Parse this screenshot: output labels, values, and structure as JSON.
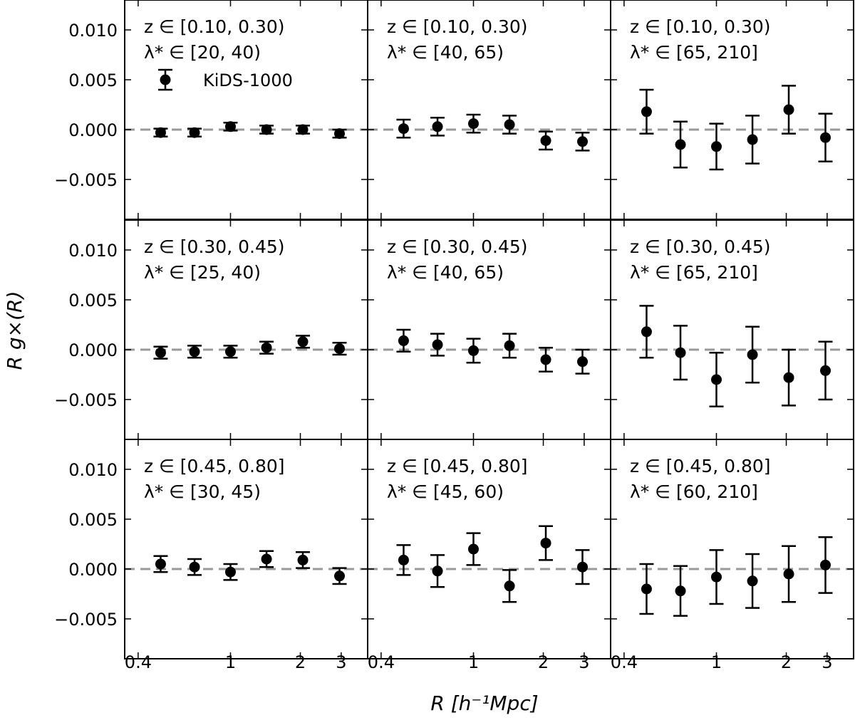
{
  "chart_data": {
    "type": "scatter",
    "layout": "3x3 grid, shared axes",
    "xlabel": "R [h⁻¹Mpc]",
    "ylabel": "R g×(R)",
    "xscale": "log",
    "xlim": [
      0.35,
      3.9
    ],
    "ylim": [
      -0.009,
      0.013
    ],
    "xticks": [
      0.4,
      1,
      2,
      3
    ],
    "xtick_labels": [
      "0.4",
      "1",
      "2",
      "3"
    ],
    "yticks": [
      -0.005,
      0.0,
      0.005,
      0.01
    ],
    "ytick_labels": [
      "−0.005",
      "0.000",
      "0.005",
      "0.010"
    ],
    "reference_line": 0.0,
    "legend": {
      "label": "KiDS-1000",
      "location": "top-left (first panel)"
    },
    "x": [
      0.5,
      0.7,
      1.0,
      1.43,
      2.05,
      2.95
    ],
    "panels": [
      {
        "z_label": "z ∈ [0.10, 0.30)",
        "lambda_label": "λ* ∈ [20, 40)",
        "y": [
          -0.0003,
          -0.0003,
          0.0003,
          0.0,
          0.0,
          -0.0004
        ],
        "err": [
          0.0004,
          0.0004,
          0.0004,
          0.0004,
          0.0004,
          0.0004
        ]
      },
      {
        "z_label": "z ∈ [0.10, 0.30)",
        "lambda_label": "λ* ∈ [40, 65)",
        "y": [
          0.0001,
          0.0003,
          0.0006,
          0.0005,
          -0.0011,
          -0.0012
        ],
        "err": [
          0.0009,
          0.0009,
          0.0009,
          0.0009,
          0.0009,
          0.0009
        ]
      },
      {
        "z_label": "z ∈ [0.10, 0.30)",
        "lambda_label": "λ* ∈ [65, 210]",
        "y": [
          0.0018,
          -0.0015,
          -0.0017,
          -0.001,
          0.002,
          -0.0008
        ],
        "err": [
          0.0022,
          0.0023,
          0.0023,
          0.0024,
          0.0024,
          0.0024
        ]
      },
      {
        "z_label": "z ∈ [0.30, 0.45)",
        "lambda_label": "λ* ∈ [25, 40)",
        "y": [
          -0.0003,
          -0.0002,
          -0.0002,
          0.0002,
          0.0008,
          0.0001
        ],
        "err": [
          0.0006,
          0.0006,
          0.0006,
          0.0006,
          0.0006,
          0.0006
        ]
      },
      {
        "z_label": "z ∈ [0.30, 0.45)",
        "lambda_label": "λ* ∈ [40, 65)",
        "y": [
          0.0009,
          0.0005,
          -0.0001,
          0.0004,
          -0.001,
          -0.0012
        ],
        "err": [
          0.0011,
          0.0011,
          0.0012,
          0.0012,
          0.0012,
          0.0012
        ]
      },
      {
        "z_label": "z ∈ [0.30, 0.45)",
        "lambda_label": "λ* ∈ [65, 210]",
        "y": [
          0.0018,
          -0.0003,
          -0.003,
          -0.0005,
          -0.0028,
          -0.0021
        ],
        "err": [
          0.0026,
          0.0027,
          0.0027,
          0.0028,
          0.0028,
          0.0029
        ]
      },
      {
        "z_label": "z ∈ [0.45, 0.80]",
        "lambda_label": "λ* ∈ [30, 45)",
        "y": [
          0.0005,
          0.0002,
          -0.0003,
          0.001,
          0.0009,
          -0.0007
        ],
        "err": [
          0.0008,
          0.0008,
          0.0008,
          0.0008,
          0.0008,
          0.0008
        ]
      },
      {
        "z_label": "z ∈ [0.45, 0.80]",
        "lambda_label": "λ* ∈ [45, 60)",
        "y": [
          0.0009,
          -0.0002,
          0.002,
          -0.0017,
          0.0026,
          0.0002
        ],
        "err": [
          0.0015,
          0.0016,
          0.0016,
          0.0016,
          0.0017,
          0.0017
        ]
      },
      {
        "z_label": "z ∈ [0.45, 0.80]",
        "lambda_label": "λ* ∈ [60, 210]",
        "y": [
          -0.002,
          -0.0022,
          -0.0008,
          -0.0012,
          -0.0005,
          0.0004
        ],
        "err": [
          0.0025,
          0.0025,
          0.0027,
          0.0027,
          0.0028,
          0.0028
        ]
      }
    ]
  }
}
